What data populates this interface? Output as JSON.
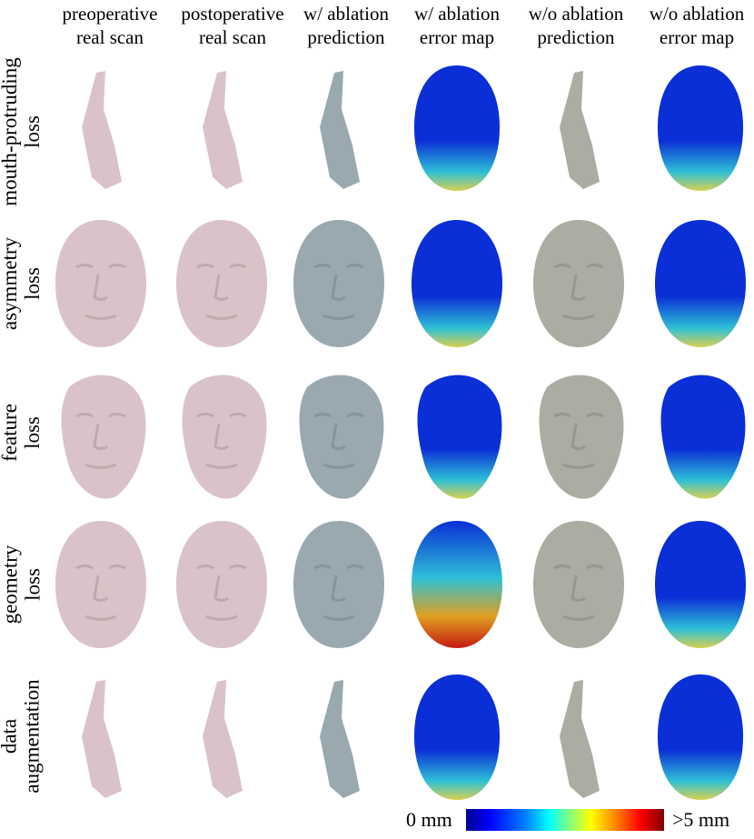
{
  "columns": [
    {
      "line1": "preoperative",
      "line2": "real scan",
      "kind": "pink"
    },
    {
      "line1": "postoperative",
      "line2": "real scan",
      "kind": "pink"
    },
    {
      "line1": "w/ ablation",
      "line2": "prediction",
      "kind": "blue"
    },
    {
      "line1": "w/ ablation",
      "line2": "error map",
      "kind": "error"
    },
    {
      "line1": "w/o ablation",
      "line2": "prediction",
      "kind": "green"
    },
    {
      "line1": "w/o ablation",
      "line2": "error map",
      "kind": "error"
    }
  ],
  "rows": [
    {
      "line1": "mouth-protruding",
      "line2": "loss",
      "view": "profile"
    },
    {
      "line1": "asymmetry",
      "line2": "loss",
      "view": "front"
    },
    {
      "line1": "feature",
      "line2": "loss",
      "view": "three-quarter"
    },
    {
      "line1": "geometry",
      "line2": "loss",
      "view": "front"
    },
    {
      "line1": "data",
      "line2": "augmentation",
      "view": "profile"
    }
  ],
  "colorbar": {
    "min_label": "0 mm",
    "max_label": ">5 mm"
  },
  "colors": {
    "pink": "#d9c3c8",
    "blue": "#9aa9b0",
    "green": "#a9ada2",
    "error_low": "#0a2fd6",
    "error_mid": "#2ec0d6",
    "error_high": "#c41a10"
  }
}
